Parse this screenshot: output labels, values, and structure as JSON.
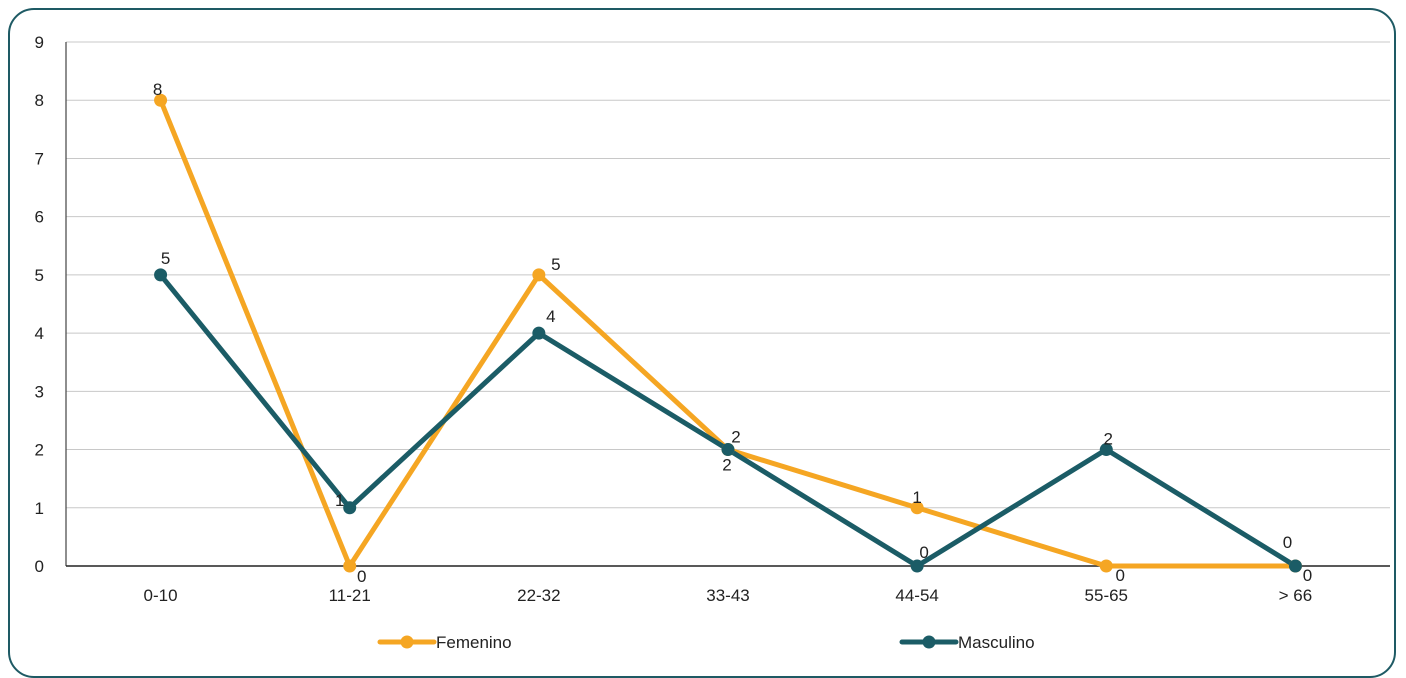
{
  "chart_data": {
    "type": "line",
    "categories": [
      "0-10",
      "11-21",
      "22-32",
      "33-43",
      "44-54",
      "55-65",
      "> 66"
    ],
    "series": [
      {
        "name": "Femenino",
        "values": [
          8,
          0,
          5,
          2,
          1,
          0,
          0
        ],
        "color": "#f5a623"
      },
      {
        "name": "Masculino",
        "values": [
          5,
          1,
          4,
          2,
          0,
          2,
          0
        ],
        "color": "#1b5c66"
      }
    ],
    "ylim": [
      0,
      9
    ],
    "yticks": [
      "0",
      "1",
      "2",
      "3",
      "4",
      "5",
      "6",
      "7",
      "8",
      "9"
    ],
    "grid": true,
    "legend": "bottom",
    "data_labels": true
  }
}
